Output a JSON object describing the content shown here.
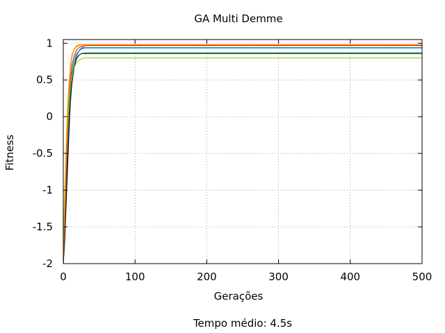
{
  "chart_data": {
    "type": "line",
    "title": "GA Multi Demme",
    "xlabel": "Gerações",
    "ylabel": "Fitness",
    "footer": "Tempo médio: 4.5s",
    "xlim": [
      0,
      500
    ],
    "ylim": [
      -2,
      1.05
    ],
    "grid": true,
    "legend": "none",
    "x_ticks": [
      0,
      100,
      200,
      300,
      400,
      500
    ],
    "y_ticks": [
      -2,
      -1.5,
      -1,
      -0.5,
      0,
      0.5,
      1
    ],
    "x_tick_labels": [
      "0",
      "100",
      "200",
      "300",
      "400",
      "500"
    ],
    "y_tick_labels": [
      "-2",
      "-1.5",
      "-1",
      "-0.5",
      "0",
      "0.5",
      "1"
    ],
    "series": [
      {
        "color": "#9400d3",
        "x": [
          0,
          2,
          4,
          6,
          8,
          10,
          12,
          15,
          18,
          22,
          26,
          30,
          35,
          40,
          500
        ],
        "y": [
          -2,
          -1.4,
          -0.9,
          -0.5,
          -0.1,
          0.3,
          0.55,
          0.72,
          0.82,
          0.9,
          0.94,
          0.96,
          0.97,
          0.97,
          0.97
        ]
      },
      {
        "color": "#009e73",
        "x": [
          0,
          2,
          4,
          6,
          8,
          10,
          12,
          15,
          18,
          22,
          26,
          30,
          35,
          40,
          500
        ],
        "y": [
          -2,
          -1.2,
          -0.7,
          -0.3,
          0.1,
          0.4,
          0.6,
          0.72,
          0.8,
          0.84,
          0.86,
          0.87,
          0.87,
          0.87,
          0.87
        ]
      },
      {
        "color": "#56b4e9",
        "x": [
          0,
          2,
          4,
          6,
          8,
          10,
          12,
          15,
          18,
          22,
          26,
          30,
          35,
          40,
          500
        ],
        "y": [
          -1.8,
          -1.0,
          -0.4,
          0.0,
          0.3,
          0.5,
          0.65,
          0.78,
          0.86,
          0.9,
          0.92,
          0.93,
          0.93,
          0.93,
          0.93
        ]
      },
      {
        "color": "#e69f00",
        "x": [
          0,
          2,
          4,
          6,
          8,
          10,
          12,
          15,
          18,
          22,
          26,
          30,
          35,
          40,
          500
        ],
        "y": [
          -2,
          -1.3,
          -0.6,
          0.0,
          0.4,
          0.65,
          0.8,
          0.9,
          0.95,
          0.97,
          0.98,
          0.98,
          0.98,
          0.98,
          0.98
        ]
      },
      {
        "color": "#f0e442",
        "x": [
          0,
          2,
          4,
          6,
          8,
          10,
          12,
          15,
          18,
          22,
          26,
          30,
          35,
          40,
          500
        ],
        "y": [
          -1.5,
          -0.9,
          -0.3,
          0.2,
          0.5,
          0.7,
          0.82,
          0.9,
          0.94,
          0.96,
          0.96,
          0.96,
          0.96,
          0.96,
          0.96
        ]
      },
      {
        "color": "#0072b2",
        "x": [
          0,
          2,
          4,
          6,
          8,
          10,
          12,
          15,
          18,
          22,
          26,
          30,
          35,
          40,
          500
        ],
        "y": [
          -2,
          -1.6,
          -1.1,
          -0.6,
          -0.1,
          0.3,
          0.55,
          0.72,
          0.83,
          0.9,
          0.93,
          0.94,
          0.94,
          0.94,
          0.94
        ]
      },
      {
        "color": "#e51e10",
        "x": [
          0,
          2,
          4,
          6,
          8,
          10,
          12,
          15,
          18,
          22,
          26,
          30,
          35,
          40,
          500
        ],
        "y": [
          -2,
          -1.5,
          -0.8,
          -0.3,
          0.2,
          0.5,
          0.7,
          0.82,
          0.9,
          0.94,
          0.96,
          0.97,
          0.97,
          0.97,
          0.97
        ]
      },
      {
        "color": "#000000",
        "x": [
          0,
          2,
          4,
          6,
          8,
          10,
          12,
          15,
          18,
          22,
          26,
          30,
          35,
          40,
          500
        ],
        "y": [
          -2,
          -1.7,
          -1.2,
          -0.7,
          -0.2,
          0.2,
          0.45,
          0.65,
          0.78,
          0.84,
          0.86,
          0.86,
          0.86,
          0.86,
          0.86
        ]
      },
      {
        "color": "#88cc00",
        "x": [
          0,
          2,
          4,
          6,
          8,
          10,
          12,
          15,
          18,
          22,
          26,
          30,
          35,
          40,
          500
        ],
        "y": [
          -1.6,
          -1.1,
          -0.6,
          -0.1,
          0.2,
          0.4,
          0.55,
          0.66,
          0.73,
          0.77,
          0.79,
          0.8,
          0.8,
          0.8,
          0.8
        ]
      },
      {
        "color": "#ff7f0e",
        "x": [
          0,
          2,
          4,
          6,
          8,
          10,
          12,
          15,
          18,
          22,
          26,
          30,
          35,
          40,
          500
        ],
        "y": [
          -2,
          -1.4,
          -0.5,
          0.1,
          0.45,
          0.7,
          0.84,
          0.92,
          0.96,
          0.98,
          0.98,
          0.98,
          0.98,
          0.98,
          0.98
        ]
      }
    ]
  }
}
